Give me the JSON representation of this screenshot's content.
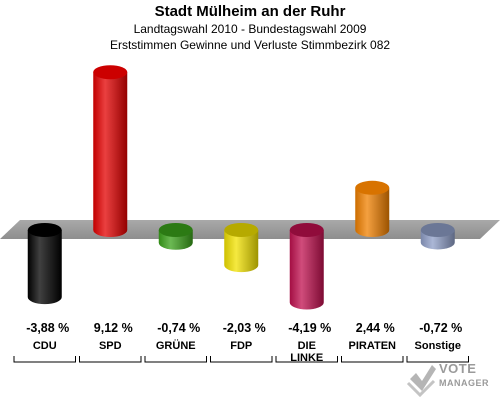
{
  "header": {
    "title": "Stadt Mülheim an der Ruhr",
    "subtitle": "Landtagswahl 2010 - Bundestagswahl 2009",
    "subtitle2": "Erststimmen Gewinne und Verluste Stimmbezirk 082"
  },
  "chart_data": {
    "type": "bar",
    "title": "Stadt Mülheim an der Ruhr",
    "categories": [
      "CDU",
      "SPD",
      "GRÜNE",
      "FDP",
      "DIE LINKE",
      "PIRATEN",
      "Sonstige"
    ],
    "category_lines": [
      [
        "CDU"
      ],
      [
        "SPD"
      ],
      [
        "GRÜNE"
      ],
      [
        "FDP"
      ],
      [
        "DIE",
        "LINKE"
      ],
      [
        "PIRATEN"
      ],
      [
        "Sonstige"
      ]
    ],
    "values": [
      -3.88,
      9.12,
      -0.74,
      -2.03,
      -4.19,
      2.44,
      -0.72
    ],
    "value_labels": [
      "-3,88 %",
      "9,12 %",
      "-0,74 %",
      "-2,03 %",
      "-4,19 %",
      "2,44 %",
      "-0,72 %"
    ],
    "colors": [
      "#000000",
      "#e30000",
      "#3aa21a",
      "#f2e200",
      "#c0104f",
      "#f08000",
      "#8f9fc8"
    ],
    "baseline": 0
  },
  "logo": {
    "word1": "VOTE",
    "word2": "MANAGER"
  }
}
